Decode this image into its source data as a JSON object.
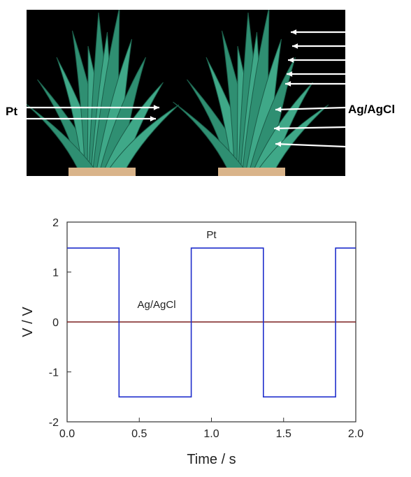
{
  "photo": {
    "label_left": "Pt",
    "label_right": "Ag/AgCl",
    "background_color": "#000000",
    "leaf_color": "#3fa888",
    "pot_color": "#d9b48a",
    "arrow_color": "#ffffff"
  },
  "chart_data": {
    "type": "line",
    "xlabel": "Time / s",
    "ylabel": "V / V",
    "xlim": [
      0.0,
      2.0
    ],
    "ylim": [
      -2,
      2
    ],
    "xticks": [
      "0.0",
      "0.5",
      "1.0",
      "1.5",
      "2.0"
    ],
    "yticks": [
      "2",
      "1",
      "0",
      "-1",
      "-2"
    ],
    "series": [
      {
        "name": "Pt",
        "color": "#1f2ecc",
        "x": [
          0.0,
          0.36,
          0.36,
          0.86,
          0.86,
          1.36,
          1.36,
          1.86,
          1.86,
          2.0
        ],
        "y": [
          1.48,
          1.48,
          -1.5,
          -1.5,
          1.48,
          1.48,
          -1.5,
          -1.5,
          1.48,
          1.48
        ]
      },
      {
        "name": "Ag/AgCl",
        "color": "#7a1f1f",
        "x": [
          0.0,
          2.0
        ],
        "y": [
          0.0,
          0.0
        ]
      }
    ],
    "annotations": [
      {
        "text": "Pt",
        "x": 1.0,
        "y": 1.68
      },
      {
        "text": "Ag/AgCl",
        "x": 0.62,
        "y": 0.28
      }
    ]
  }
}
